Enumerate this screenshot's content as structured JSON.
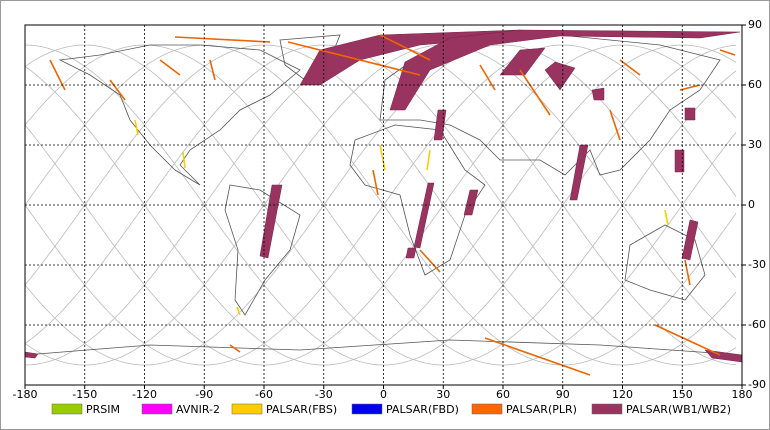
{
  "map": {
    "xlim": [
      -180,
      180
    ],
    "ylim": [
      -90,
      90
    ],
    "xticks": [
      -180,
      -150,
      -120,
      -90,
      -60,
      -30,
      0,
      30,
      60,
      90,
      120,
      150,
      180
    ],
    "yticks": [
      -90,
      -60,
      -30,
      0,
      30,
      60,
      90
    ],
    "legend": [
      {
        "name": "PRSIM",
        "color": "#99cc00"
      },
      {
        "name": "AVNIR-2",
        "color": "#ff00ff"
      },
      {
        "name": "PALSAR(FBS)",
        "color": "#ffcc00"
      },
      {
        "name": "PALSAR(FBD)",
        "color": "#0000ee"
      },
      {
        "name": "PALSAR(PLR)",
        "color": "#ff6600"
      },
      {
        "name": "PALSAR(WB1/WB2)",
        "color": "#99335f"
      }
    ]
  }
}
